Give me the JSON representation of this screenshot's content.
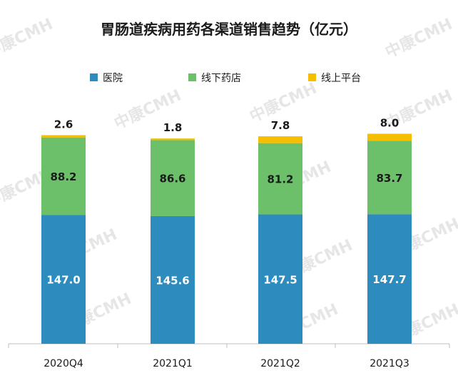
{
  "watermark": "中康CMH",
  "colors": {
    "hospital": "#2e8bbd",
    "offline_pharmacy": "#6cc06a",
    "online_platform": "#f5bf00",
    "axis": "#bfbfbf"
  },
  "chart_data": {
    "type": "bar",
    "stacked": true,
    "title": "胃肠道疾病用药各渠道销售趋势（亿元）",
    "categories": [
      "2020Q4",
      "2021Q1",
      "2021Q2",
      "2021Q3"
    ],
    "series": [
      {
        "name": "医院",
        "values": [
          147.0,
          145.6,
          147.5,
          147.7
        ],
        "labels": [
          "147.0",
          "145.6",
          "147.5",
          "147.7"
        ]
      },
      {
        "name": "线下药店",
        "values": [
          88.2,
          86.6,
          81.2,
          83.7
        ],
        "labels": [
          "88.2",
          "86.6",
          "81.2",
          "83.7"
        ]
      },
      {
        "name": "线上平台",
        "values": [
          2.6,
          1.8,
          7.8,
          8.0
        ],
        "labels": [
          "2.6",
          "1.8",
          "7.8",
          "8.0"
        ]
      }
    ],
    "legend_position": "top",
    "grid": false
  }
}
